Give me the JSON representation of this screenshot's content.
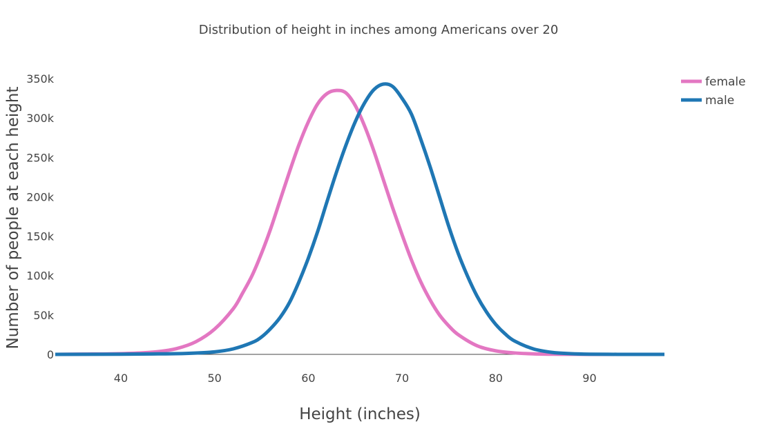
{
  "chart_data": {
    "type": "line",
    "title": "Distribution of height in inches among Americans over 20",
    "xlabel": "Height (inches)",
    "ylabel": "Number of people at each height",
    "xlim": [
      33,
      98
    ],
    "ylim": [
      0,
      350000
    ],
    "x_ticks": [
      40,
      50,
      60,
      70,
      80,
      90
    ],
    "x_tick_labels": [
      "40",
      "50",
      "60",
      "70",
      "80",
      "90"
    ],
    "y_ticks": [
      0,
      50000,
      100000,
      150000,
      200000,
      250000,
      300000,
      350000
    ],
    "y_tick_labels": [
      "0",
      "50k",
      "100k",
      "150k",
      "200k",
      "250k",
      "300k",
      "350k"
    ],
    "legend_position": "top-right",
    "series": [
      {
        "name": "female",
        "color": "#e377c2",
        "x": [
          33,
          36,
          39,
          42,
          44,
          46,
          48,
          50,
          52,
          53,
          54,
          55,
          56,
          57,
          58,
          59,
          60,
          61,
          62,
          63,
          64,
          65,
          66,
          67,
          68,
          69,
          70,
          71,
          72,
          73,
          74,
          75,
          76,
          78,
          80,
          82,
          84,
          86,
          88,
          90,
          93,
          96,
          98
        ],
        "y": [
          0,
          300,
          700,
          1800,
          3500,
          7500,
          16000,
          32000,
          58000,
          78000,
          100000,
          128000,
          160000,
          196000,
          232000,
          266000,
          295000,
          318000,
          331000,
          335000,
          332000,
          316000,
          290000,
          258000,
          222000,
          186000,
          152000,
          120000,
          92000,
          69000,
          50000,
          36000,
          25000,
          11000,
          4500,
          1800,
          700,
          250,
          100,
          30,
          5,
          0,
          0
        ]
      },
      {
        "name": "male",
        "color": "#1f77b4",
        "x": [
          33,
          40,
          44,
          47,
          50,
          52,
          54,
          55,
          56,
          57,
          58,
          59,
          60,
          61,
          62,
          63,
          64,
          65,
          66,
          67,
          68,
          69,
          70,
          71,
          72,
          73,
          74,
          75,
          76,
          77,
          78,
          79,
          80,
          81,
          82,
          84,
          86,
          88,
          90,
          93,
          96,
          98
        ],
        "y": [
          0,
          200,
          600,
          1200,
          3200,
          7000,
          15000,
          22000,
          33000,
          47000,
          66000,
          92000,
          122000,
          156000,
          194000,
          231000,
          265000,
          295000,
          319000,
          336000,
          343000,
          340000,
          325000,
          305000,
          273000,
          238000,
          200000,
          162000,
          128000,
          99000,
          74000,
          54000,
          38000,
          26000,
          17000,
          7000,
          2500,
          900,
          250,
          40,
          5,
          0
        ]
      }
    ]
  }
}
